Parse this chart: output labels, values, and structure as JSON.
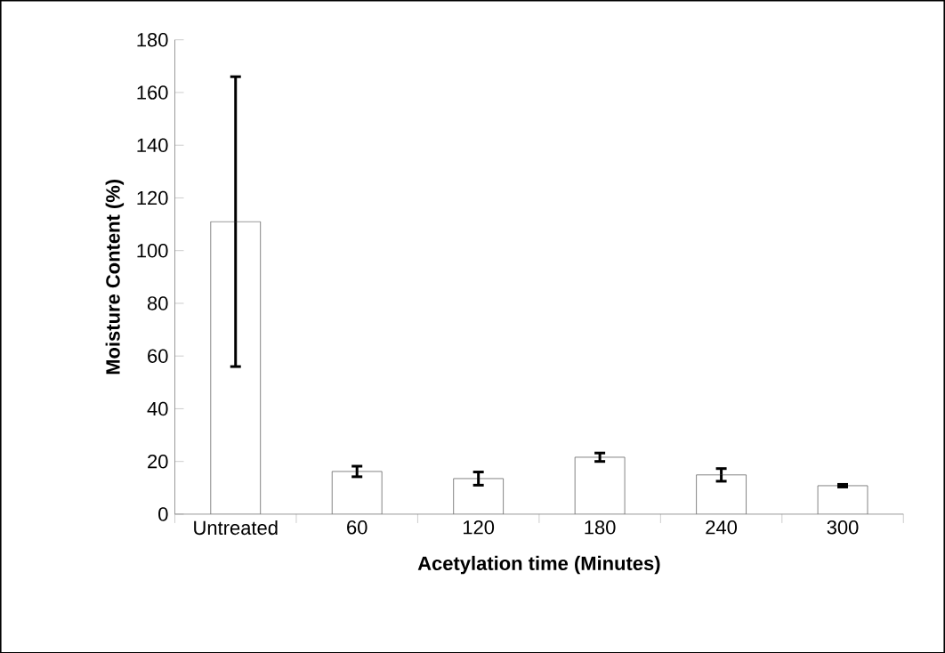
{
  "chart_data": {
    "type": "bar",
    "xlabel": "Acetylation time  (Minutes)",
    "ylabel": "Moisture Content (%)",
    "categories": [
      "Untreated",
      "60",
      "120",
      "180",
      "240",
      "300"
    ],
    "values": [
      111,
      16.2,
      13.5,
      21.6,
      14.9,
      10.8
    ],
    "errors": [
      55,
      2,
      2.5,
      1.6,
      2.4,
      0.5
    ],
    "color": "#ffffff",
    "ylim": [
      0,
      180
    ],
    "yticks": [
      0,
      20,
      40,
      60,
      80,
      100,
      120,
      140,
      160,
      180
    ]
  }
}
